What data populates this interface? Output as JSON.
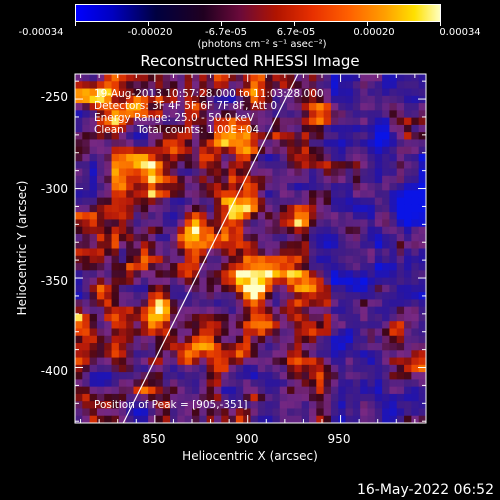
{
  "chart_data": {
    "type": "heatmap",
    "title": "Reconstructed RHESSI Image",
    "xlabel": "Heliocentric X (arcsec)",
    "ylabel": "Heliocentric Y (arcsec)",
    "xlim": [
      807,
      996
    ],
    "ylim": [
      -431,
      -236
    ],
    "xticks": [
      "850",
      "900",
      "950"
    ],
    "yticks": [
      "-250",
      "-300",
      "-350",
      "-400"
    ],
    "colorbar": {
      "range": [
        -0.00034,
        0.00034
      ],
      "tick_labels": [
        "-0.00034",
        "-0.00020",
        "-6.7e-05",
        "6.7e-05",
        "0.00020",
        "0.00034"
      ],
      "units": "(photons cm⁻² s⁻¹ asec⁻²)"
    },
    "annotations": {
      "line1": "19-Aug-2013 10:57:28.000 to 11:03:28.000",
      "line2": "Detectors: 3F 4F 5F 6F 7F 8F, Att 0",
      "line3": "Energy Range: 25.0 - 50.0 keV",
      "line4": "Clean    Total counts: 1.00E+04",
      "peak": "Position of Peak = [905,-351]"
    },
    "peak_position": [
      905,
      -351
    ],
    "limb_line": {
      "x": [
        833,
        927
      ],
      "y": [
        -431,
        -236
      ]
    }
  },
  "timestamp": "16-May-2022 06:52",
  "colors": {
    "limb": "#ffffff",
    "axes": "#ffffff",
    "background": "#000000"
  }
}
